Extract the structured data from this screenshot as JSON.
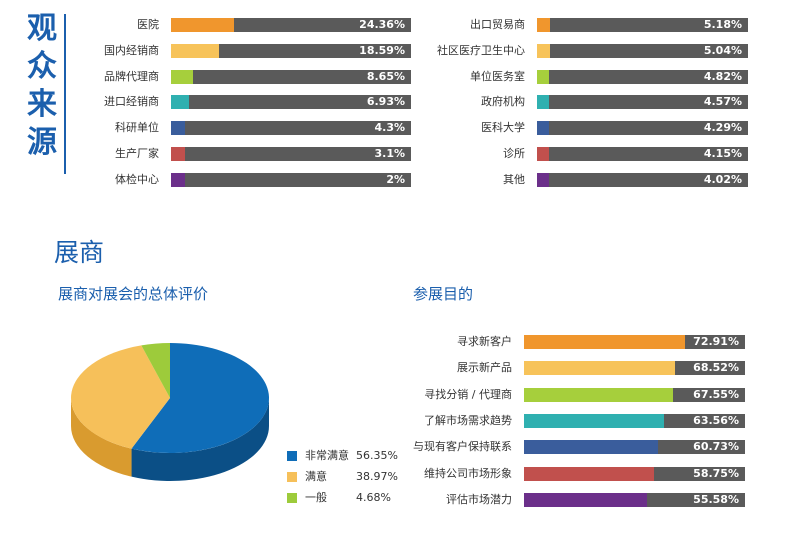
{
  "audience": {
    "title_chars": [
      "观",
      "众",
      "来",
      "源"
    ]
  },
  "exhibitor": {
    "heading": "展商",
    "satisfaction_title": "展商对展会的总体评价",
    "purpose_title": "参展目的"
  },
  "colors": {
    "orange": "#f0962d",
    "yellow": "#f7c35a",
    "lime": "#a6cf3c",
    "teal": "#2fb0b0",
    "navy": "#3a5d9c",
    "red": "#c1504d",
    "purple": "#6b2f8a",
    "track": "#5a5a5a",
    "blue": "#0f6db8",
    "pie_yellow": "#f6c05a",
    "pie_green": "#9dcb3b",
    "title_blue": "#1b5fad"
  },
  "chart_data": [
    {
      "type": "bar",
      "name": "audience_left",
      "categories": [
        "医院",
        "国内经销商",
        "品牌代理商",
        "进口经销商",
        "科研单位",
        "生产厂家",
        "体检中心"
      ],
      "values": [
        24.36,
        18.59,
        8.65,
        6.93,
        4.3,
        3.1,
        2
      ],
      "labels": [
        "24.36%",
        "18.59%",
        "8.65%",
        "6.93%",
        "4.3%",
        "3.1%",
        "2%"
      ],
      "colors": [
        "orange",
        "yellow",
        "lime",
        "teal",
        "navy",
        "red",
        "purple"
      ],
      "xlim": [
        0,
        100
      ]
    },
    {
      "type": "bar",
      "name": "audience_right",
      "categories": [
        "出口贸易商",
        "社区医疗卫生中心",
        "单位医务室",
        "政府机构",
        "医科大学",
        "诊所",
        "其他"
      ],
      "values": [
        5.18,
        5.04,
        4.82,
        4.57,
        4.29,
        4.15,
        4.02
      ],
      "labels": [
        "5.18%",
        "5.04%",
        "4.82%",
        "4.57%",
        "4.29%",
        "4.15%",
        "4.02%"
      ],
      "colors": [
        "orange",
        "yellow",
        "lime",
        "teal",
        "navy",
        "red",
        "purple"
      ],
      "xlim": [
        0,
        100
      ]
    },
    {
      "type": "pie",
      "name": "satisfaction",
      "categories": [
        "非常满意",
        "满意",
        "一般"
      ],
      "values": [
        56.35,
        38.97,
        4.68
      ],
      "labels": [
        "56.35%",
        "38.97%",
        "4.68%"
      ],
      "colors": [
        "blue",
        "pie_yellow",
        "pie_green"
      ]
    },
    {
      "type": "bar",
      "name": "purpose",
      "categories": [
        "寻求新客户",
        "展示新产品",
        "寻找分销 / 代理商",
        "了解市场需求趋势",
        "与现有客户保持联系",
        "维持公司市场形象",
        "评估市场潜力"
      ],
      "values": [
        72.91,
        68.52,
        67.55,
        63.56,
        60.73,
        58.75,
        55.58
      ],
      "labels": [
        "72.91%",
        "68.52%",
        "67.55%",
        "63.56%",
        "60.73%",
        "58.75%",
        "55.58%"
      ],
      "colors": [
        "orange",
        "yellow",
        "lime",
        "teal",
        "navy",
        "red",
        "purple"
      ],
      "xlim": [
        0,
        100
      ]
    }
  ]
}
